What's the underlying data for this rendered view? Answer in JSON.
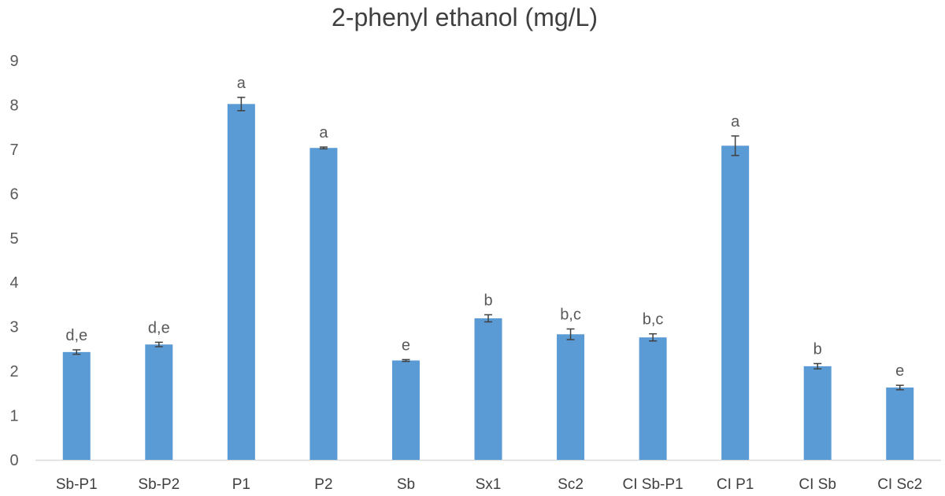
{
  "chart_data": {
    "type": "bar",
    "title": "2-phenyl ethanol (mg/L)",
    "xlabel": "",
    "ylabel": "",
    "ylim": [
      0,
      9
    ],
    "y_ticks": [
      "0",
      "1",
      "2",
      "3",
      "4",
      "5",
      "6",
      "7",
      "8",
      "9"
    ],
    "grid": false,
    "legend": "none",
    "bar_color": "#5B9BD5",
    "categories": [
      "Sb-P1",
      "Sb-P2",
      "P1",
      "P2",
      "Sb",
      "Sx1",
      "Sc2",
      "CI Sb-P1",
      "CI P1",
      "CI Sb",
      "CI Sc2"
    ],
    "values": [
      2.43,
      2.6,
      8.02,
      7.03,
      2.24,
      3.19,
      2.83,
      2.76,
      7.08,
      2.11,
      1.63
    ],
    "errors": [
      0.05,
      0.05,
      0.15,
      0.02,
      0.02,
      0.08,
      0.12,
      0.08,
      0.22,
      0.06,
      0.05
    ],
    "annotations": [
      "d,e",
      "d,e",
      "a",
      "a",
      "e",
      "b",
      "b,c",
      "b,c",
      "a",
      "b",
      "e"
    ]
  }
}
